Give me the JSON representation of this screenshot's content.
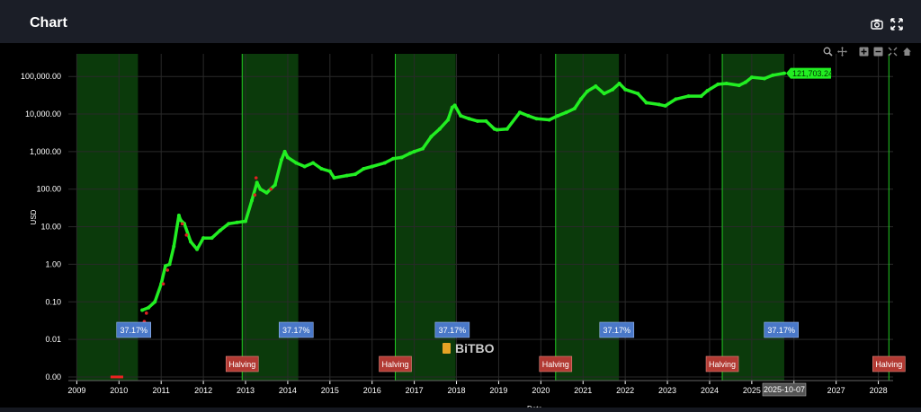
{
  "header": {
    "title": "Chart"
  },
  "icons": {
    "camera": "camera-icon",
    "expand": "expand-icon"
  },
  "modebar": [
    "zoom-icon",
    "pan-icon",
    "zoom-in-icon",
    "zoom-out-icon",
    "autoscale-icon",
    "reset-axes-icon"
  ],
  "colors": {
    "price": "#22ee22",
    "band": "#0b3a0b",
    "halving": "#b23a33",
    "pct": "#4a78c8",
    "bg": "#000000"
  },
  "chart_data": {
    "type": "line",
    "title": "",
    "xlabel": "Date",
    "ylabel": "USD",
    "yscale": "log",
    "xlim": [
      2008.8,
      2028.35
    ],
    "ylim": [
      0.0008,
      400000
    ],
    "y_ticks": [
      {
        "v": 0.001,
        "label": "0.00"
      },
      {
        "v": 0.01,
        "label": "0.01"
      },
      {
        "v": 0.1,
        "label": "0.10"
      },
      {
        "v": 1,
        "label": "1.00"
      },
      {
        "v": 10,
        "label": "10.00"
      },
      {
        "v": 100,
        "label": "100.00"
      },
      {
        "v": 1000,
        "label": "1,000.00"
      },
      {
        "v": 10000,
        "label": "10,000.00"
      },
      {
        "v": 100000,
        "label": "100,000.00"
      }
    ],
    "x_ticks": [
      "2009",
      "2010",
      "2011",
      "2012",
      "2013",
      "2014",
      "2015",
      "2016",
      "2017",
      "2018",
      "2019",
      "2020",
      "2021",
      "2022",
      "2023",
      "2024",
      "2025",
      "2026",
      "2027",
      "2028"
    ],
    "series": [
      {
        "x": [
          2010.55,
          2010.7,
          2010.85,
          2011.0,
          2011.1,
          2011.2,
          2011.3,
          2011.42,
          2011.46,
          2011.55,
          2011.7,
          2011.85,
          2012.0,
          2012.2,
          2012.4,
          2012.6,
          2012.8,
          2013.0,
          2013.15,
          2013.27,
          2013.35,
          2013.5,
          2013.7,
          2013.85,
          2013.93,
          2014.0,
          2014.2,
          2014.4,
          2014.6,
          2014.8,
          2015.0,
          2015.1,
          2015.4,
          2015.6,
          2015.8,
          2016.0,
          2016.3,
          2016.5,
          2016.7,
          2016.9,
          2017.0,
          2017.2,
          2017.4,
          2017.6,
          2017.8,
          2017.9,
          2017.96,
          2018.1,
          2018.3,
          2018.5,
          2018.7,
          2018.9,
          2018.96,
          2019.2,
          2019.5,
          2019.7,
          2019.9,
          2020.2,
          2020.4,
          2020.6,
          2020.8,
          2020.95,
          2021.1,
          2021.3,
          2021.5,
          2021.7,
          2021.86,
          2022.0,
          2022.3,
          2022.5,
          2022.8,
          2022.95,
          2023.2,
          2023.5,
          2023.8,
          2023.95,
          2024.2,
          2024.4,
          2024.7,
          2024.85,
          2025.0,
          2025.3,
          2025.5,
          2025.77
        ],
        "y": [
          0.06,
          0.07,
          0.1,
          0.3,
          0.9,
          1.0,
          3.0,
          20,
          15,
          12,
          4,
          2.5,
          5,
          5,
          8,
          12,
          13,
          14,
          50,
          150,
          100,
          80,
          130,
          600,
          1000,
          700,
          500,
          400,
          500,
          350,
          300,
          200,
          230,
          250,
          350,
          400,
          500,
          650,
          700,
          900,
          1000,
          1200,
          2500,
          4000,
          7000,
          15000,
          17000,
          9000,
          7500,
          6500,
          6500,
          4000,
          3800,
          4000,
          11000,
          9000,
          7500,
          7000,
          9000,
          11000,
          14000,
          25000,
          40000,
          55000,
          35000,
          45000,
          65000,
          45000,
          35000,
          20000,
          18000,
          16500,
          25000,
          30000,
          30000,
          42000,
          62000,
          65000,
          58000,
          70000,
          95000,
          88000,
          108000,
          121703.24
        ]
      }
    ],
    "scatter_red": [
      [
        2010.6,
        0.03
      ],
      [
        2010.65,
        0.05
      ],
      [
        2011.5,
        12
      ],
      [
        2011.6,
        6
      ],
      [
        2013.22,
        70
      ],
      [
        2013.25,
        200
      ],
      [
        2013.6,
        100
      ],
      [
        2011.15,
        0.7
      ],
      [
        2011.05,
        0.3
      ]
    ],
    "early_dashes": [
      2009.8,
      2010.1
    ],
    "bull_bands": [
      [
        2009.0,
        2010.45
      ],
      [
        2012.92,
        2014.25
      ],
      [
        2016.55,
        2017.98
      ],
      [
        2020.35,
        2021.85
      ],
      [
        2024.3,
        2025.77
      ]
    ],
    "halving_lines": [
      2012.92,
      2016.55,
      2020.35,
      2024.3,
      2028.25
    ],
    "halving_labels": [
      {
        "x": 2012.92,
        "text": "Halving"
      },
      {
        "x": 2016.55,
        "text": "Halving"
      },
      {
        "x": 2020.35,
        "text": "Halving"
      },
      {
        "x": 2024.3,
        "text": "Halving"
      },
      {
        "x": 2028.25,
        "text": "Halving"
      }
    ],
    "pct_labels": [
      {
        "x": 2010.35,
        "text": "37.17%"
      },
      {
        "x": 2014.2,
        "text": "37.17%"
      },
      {
        "x": 2017.9,
        "text": "37.17%"
      },
      {
        "x": 2021.8,
        "text": "37.17%"
      },
      {
        "x": 2025.7,
        "text": "37.17%"
      }
    ],
    "last_price_label": "121,703.24",
    "hover_x_label": "2025-10-07",
    "watermark": "BiTBO",
    "grid": true,
    "legend": "none"
  }
}
